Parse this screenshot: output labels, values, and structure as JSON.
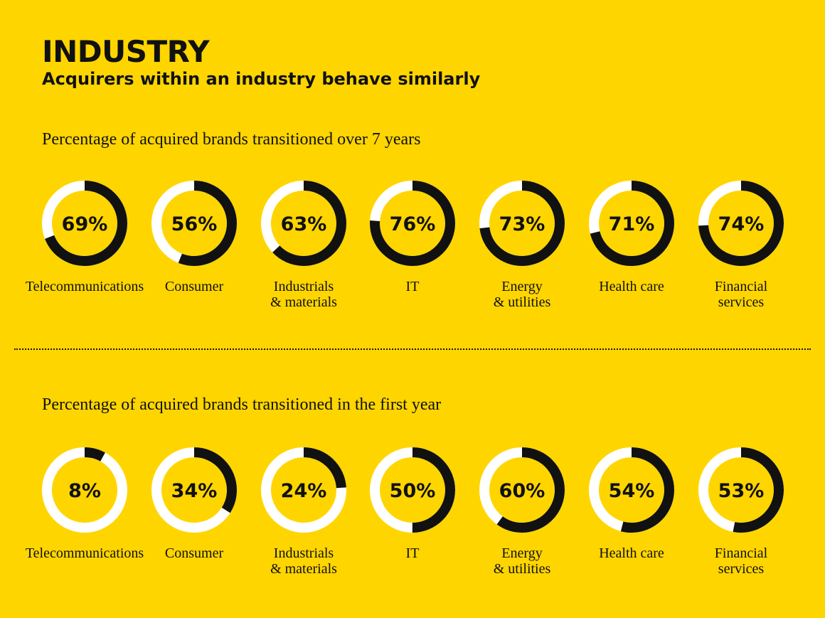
{
  "header": {
    "title": "INDUSTRY",
    "subtitle": "Acquirers within an industry behave similarly"
  },
  "colors": {
    "background": "#FFD500",
    "track": "#FFFFFF",
    "fill": "#111111"
  },
  "chart_data": [
    {
      "type": "donut",
      "title": "Percentage of acquired brands transitioned over 7 years",
      "categories": [
        "Telecommunications",
        "Consumer",
        "Industrials\n& materials",
        "IT",
        "Energy\n& utilities",
        "Health care",
        "Financial\nservices"
      ],
      "values": [
        69,
        56,
        63,
        76,
        73,
        71,
        74
      ],
      "value_labels": [
        "69%",
        "56%",
        "63%",
        "76%",
        "73%",
        "71%",
        "74%"
      ],
      "unit": "%"
    },
    {
      "type": "donut",
      "title": "Percentage of acquired brands transitioned in the first year",
      "categories": [
        "Telecommunications",
        "Consumer",
        "Industrials\n& materials",
        "IT",
        "Energy\n& utilities",
        "Health care",
        "Financial\nservices"
      ],
      "values": [
        8,
        34,
        24,
        50,
        60,
        54,
        53
      ],
      "value_labels": [
        "8%",
        "34%",
        "24%",
        "50%",
        "60%",
        "54%",
        "53%"
      ],
      "unit": "%"
    }
  ]
}
